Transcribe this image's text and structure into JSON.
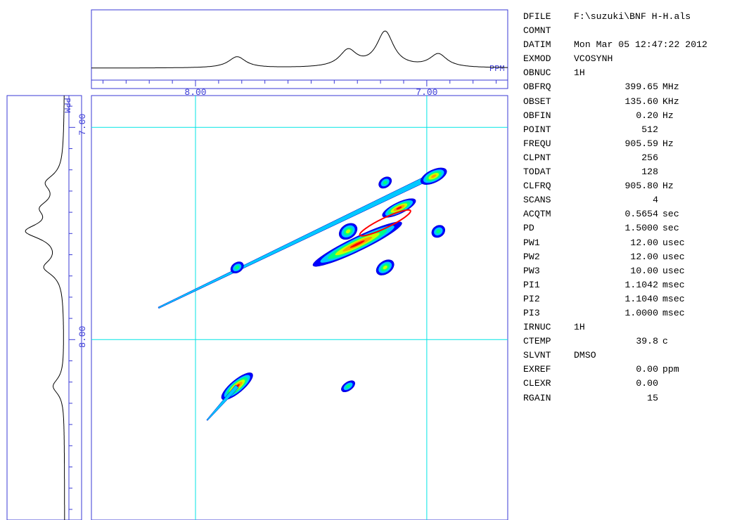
{
  "chart_data": {
    "type": "heatmap",
    "title": "",
    "f2_axis": {
      "label": "PPM",
      "range": [
        8.45,
        6.65
      ],
      "ticks": [
        "8.00",
        "7.00"
      ]
    },
    "f1_axis": {
      "label": "PPM",
      "range": [
        6.85,
        8.85
      ],
      "ticks": [
        "7.00",
        "8.00"
      ]
    },
    "grid_ppm": {
      "x": [
        8.0,
        7.0
      ],
      "y": [
        7.0,
        8.0
      ]
    },
    "projection_f2": {
      "peaks": [
        {
          "ppm": 7.82,
          "height": 0.22
        },
        {
          "ppm": 7.34,
          "height": 0.33
        },
        {
          "ppm": 7.18,
          "height": 0.7
        },
        {
          "ppm": 6.95,
          "height": 0.26
        }
      ]
    },
    "projection_f1": {
      "peaks": [
        {
          "ppm": 7.26,
          "height": 0.28
        },
        {
          "ppm": 7.38,
          "height": 0.32
        },
        {
          "ppm": 7.49,
          "height": 0.62
        },
        {
          "ppm": 7.66,
          "height": 0.32
        },
        {
          "ppm": 8.22,
          "height": 0.2
        }
      ]
    },
    "diagonal": {
      "from": [
        8.16,
        7.85
      ],
      "to": [
        6.96,
        7.22
      ]
    },
    "cross_peaks": [
      {
        "f2": 7.82,
        "f1": 7.66,
        "intensity": 0.25
      },
      {
        "f2": 7.34,
        "f1": 7.49,
        "intensity": 0.35
      },
      {
        "f2": 7.18,
        "f1": 7.26,
        "intensity": 0.2
      },
      {
        "f2": 7.18,
        "f1": 7.66,
        "intensity": 0.35
      },
      {
        "f2": 6.95,
        "f1": 7.49,
        "intensity": 0.25
      },
      {
        "f2": 7.82,
        "f1": 8.22,
        "intensity": 0.75
      },
      {
        "f2": 7.34,
        "f1": 8.22,
        "intensity": 0.25
      }
    ],
    "colormap": [
      "#0000ff",
      "#00c8ff",
      "#00ff80",
      "#c8ff00",
      "#ffa000",
      "#ff0000"
    ],
    "grid_color": "#00e5e5",
    "frame_color": "#3a3ad6"
  },
  "params": [
    {
      "name": "DFILE",
      "text": "F:\\suzuki\\BNF H-H.als"
    },
    {
      "name": "COMNT",
      "text": ""
    },
    {
      "name": "DATIM",
      "text": "Mon Mar 05 12:47:22 2012"
    },
    {
      "name": "EXMOD",
      "text": "VCOSYNH"
    },
    {
      "name": "OBNUC",
      "text": "1H"
    },
    {
      "name": "OBFRQ",
      "value": "399.65",
      "unit": "MHz"
    },
    {
      "name": "OBSET",
      "value": "135.60",
      "unit": "KHz"
    },
    {
      "name": "OBFIN",
      "value": "0.20",
      "unit": "Hz"
    },
    {
      "name": "POINT",
      "value": "512",
      "unit": ""
    },
    {
      "name": "FREQU",
      "value": "905.59",
      "unit": "Hz"
    },
    {
      "name": "CLPNT",
      "value": "256",
      "unit": ""
    },
    {
      "name": "TODAT",
      "value": "128",
      "unit": ""
    },
    {
      "name": "CLFRQ",
      "value": "905.80",
      "unit": "Hz"
    },
    {
      "name": "SCANS",
      "value": "4",
      "unit": ""
    },
    {
      "name": "ACQTM",
      "value": "0.5654",
      "unit": "sec"
    },
    {
      "name": "PD",
      "value": "1.5000",
      "unit": "sec"
    },
    {
      "name": "PW1",
      "value": "12.00",
      "unit": "usec"
    },
    {
      "name": "PW2",
      "value": "12.00",
      "unit": "usec"
    },
    {
      "name": "PW3",
      "value": "10.00",
      "unit": "usec"
    },
    {
      "name": "PI1",
      "value": "1.1042",
      "unit": "msec"
    },
    {
      "name": "PI2",
      "value": "1.1040",
      "unit": "msec"
    },
    {
      "name": "PI3",
      "value": "1.0000",
      "unit": "msec"
    },
    {
      "name": "IRNUC",
      "text": "1H"
    },
    {
      "name": "CTEMP",
      "value": "39.8",
      "unit": "c"
    },
    {
      "name": "SLVNT",
      "text": "DMSO"
    },
    {
      "name": "EXREF",
      "value": "0.00",
      "unit": "ppm"
    },
    {
      "name": "CLEXR",
      "value": "0.00",
      "unit": ""
    },
    {
      "name": "RGAIN",
      "value": "15",
      "unit": ""
    }
  ]
}
